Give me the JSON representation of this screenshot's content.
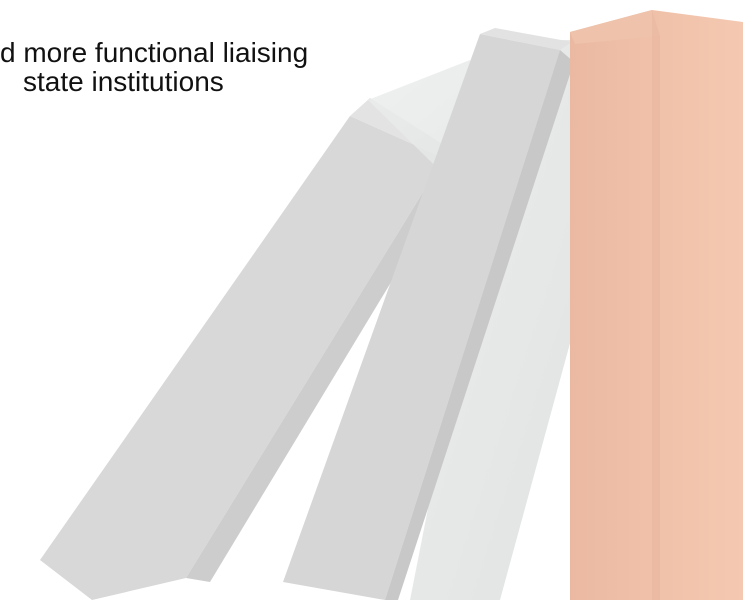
{
  "caption": {
    "line1": "d more functional liaising",
    "line2": "state institutions"
  },
  "colors": {
    "background": "#ffffff",
    "text": "#111111",
    "gray_block": "#d9d9d9",
    "gray_block_shadow": "#c6c6c6",
    "light_gray_block": "#e6e8e8",
    "peach_block": "#f2c1a8",
    "peach_block_shade": "#e8b49c"
  }
}
